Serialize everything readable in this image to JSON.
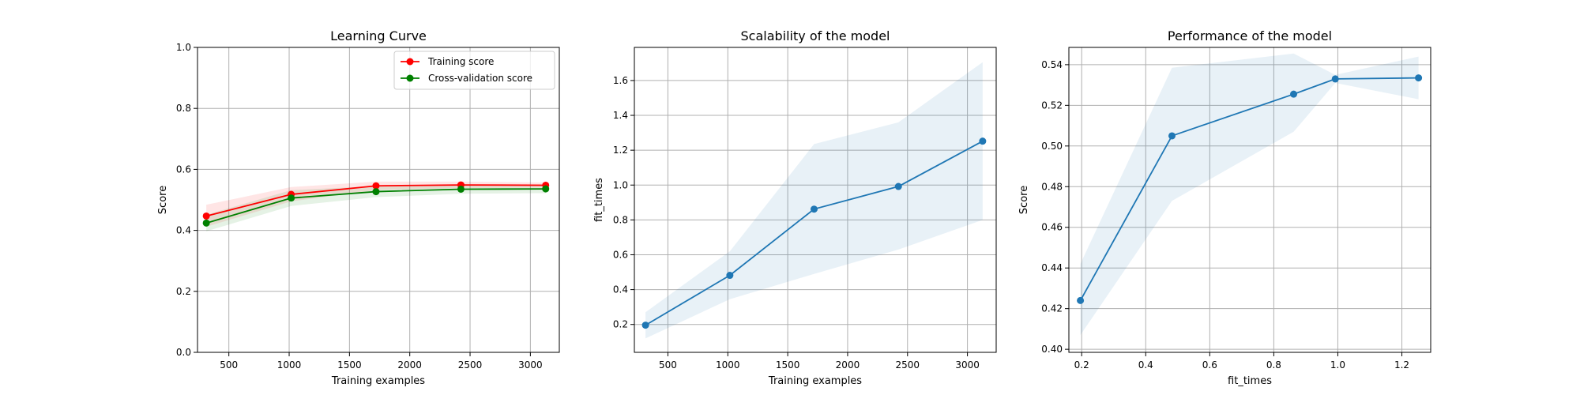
{
  "chart_data": [
    {
      "type": "line",
      "title": "Learning Curve",
      "xlabel": "Training examples",
      "ylabel": "Score",
      "xlim": [
        240,
        3240
      ],
      "ylim": [
        0.0,
        1.0
      ],
      "xticks": [
        500,
        1000,
        1500,
        2000,
        2500,
        3000
      ],
      "yticks": [
        0.0,
        0.2,
        0.4,
        0.6,
        0.8,
        1.0
      ],
      "ytick_format": 1,
      "grid": true,
      "legend": "top-right",
      "x": [
        313,
        1017,
        1720,
        2424,
        3127
      ],
      "series": [
        {
          "name": "Training score",
          "color": "#ff0000",
          "values": [
            0.447,
            0.518,
            0.546,
            0.549,
            0.548
          ],
          "band_lower": [
            0.412,
            0.495,
            0.532,
            0.539,
            0.54
          ],
          "band_upper": [
            0.484,
            0.542,
            0.56,
            0.56,
            0.557
          ]
        },
        {
          "name": "Cross-validation score",
          "color": "#008000",
          "values": [
            0.424,
            0.506,
            0.527,
            0.535,
            0.536
          ],
          "band_lower": [
            0.397,
            0.48,
            0.509,
            0.52,
            0.522
          ],
          "band_upper": [
            0.451,
            0.532,
            0.545,
            0.549,
            0.55
          ]
        }
      ]
    },
    {
      "type": "line",
      "title": "Scalability of the model",
      "xlabel": "Training examples",
      "ylabel": "fit_times",
      "xlim": [
        220,
        3240
      ],
      "ylim": [
        0.04,
        1.79
      ],
      "xticks": [
        500,
        1000,
        1500,
        2000,
        2500,
        3000
      ],
      "yticks": [
        0.2,
        0.4,
        0.6,
        0.8,
        1.0,
        1.2,
        1.4,
        1.6
      ],
      "ytick_format": 1,
      "grid": true,
      "x": [
        313,
        1017,
        1720,
        2424,
        3127
      ],
      "series": [
        {
          "name": "",
          "color": "#1f77b4",
          "values": [
            0.196,
            0.482,
            0.862,
            0.992,
            1.252
          ],
          "band_lower": [
            0.12,
            0.345,
            0.49,
            0.63,
            0.8
          ],
          "band_upper": [
            0.27,
            0.62,
            1.235,
            1.36,
            1.705
          ]
        }
      ]
    },
    {
      "type": "line",
      "title": "Performance of the model",
      "xlabel": "fit_times",
      "ylabel": "Score",
      "xlim": [
        0.16,
        1.29
      ],
      "ylim": [
        0.3985,
        0.5485
      ],
      "xticks": [
        0.2,
        0.4,
        0.6,
        0.8,
        1.0,
        1.2
      ],
      "yticks": [
        0.4,
        0.42,
        0.44,
        0.46,
        0.48,
        0.5,
        0.52,
        0.54
      ],
      "ytick_format": 2,
      "xtick_format": 1,
      "grid": true,
      "x": [
        0.196,
        0.482,
        0.862,
        0.992,
        1.252
      ],
      "series": [
        {
          "name": "",
          "color": "#1f77b4",
          "values": [
            0.424,
            0.505,
            0.5255,
            0.533,
            0.5335
          ],
          "band_lower": [
            0.407,
            0.473,
            0.507,
            0.531,
            0.523
          ],
          "band_upper": [
            0.442,
            0.5385,
            0.5455,
            0.535,
            0.544
          ]
        }
      ]
    }
  ]
}
